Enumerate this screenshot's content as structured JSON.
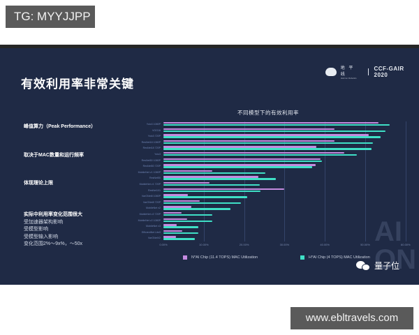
{
  "watermarks": {
    "top": "TG: MYYJJPP",
    "bottom": "www.ebltravels.com"
  },
  "slide": {
    "title": "有效利用率非常关键",
    "brand": {
      "name_cn": "地 平 线",
      "name_en": "Horizon Robotics",
      "event": "CCF-GAIR 2020"
    },
    "points": [
      {
        "heading": "峰值算力（Peak Performance）",
        "subs": []
      },
      {
        "heading": "取决于MAC数量和运行频率",
        "subs": []
      },
      {
        "heading": "体现理论上限",
        "subs": []
      },
      {
        "heading": "实际中利用率变化范围很大",
        "subs": [
          "受加速器架构影响",
          "受模型影响",
          "受模型输入影响",
          "变化范围2%～9x%，～50x"
        ]
      }
    ],
    "background_text": "AI ON",
    "source_badge": {
      "icon": "wechat-icon",
      "name": "量子位"
    }
  },
  "chart_data": {
    "type": "bar",
    "orientation": "horizontal",
    "title": "不同模型下的有效利用率",
    "xlabel": "",
    "ylabel": "",
    "xlim": [
      0,
      60
    ],
    "x_ticks": [
      "0.00%",
      "10.00%",
      "20.00%",
      "30.00%",
      "40.00%",
      "50.00%",
      "60.00%"
    ],
    "grid": true,
    "legend_position": "bottom",
    "categories": [
      "Yolo3 1080P",
      "VGG16",
      "Yolo3 720P",
      "ResNet18 1080P",
      "ResNet18 720P",
      "Yolo3",
      "ResNet50 1080P",
      "ResNet50 720P",
      "MobileNet v1 1080P",
      "ResNet50",
      "MobileNet v1 720P",
      "ResNet101",
      "VarGNet8 1080P",
      "VarGNet8 720P",
      "MobileNet v2",
      "MobileNet v2 720P",
      "MobileNet v2 1080P",
      "MobileNet v3",
      "EfficientNet Lite0",
      "VarGNetV2"
    ],
    "series": [
      {
        "name": "N*AI Chip (11.4 TOPS) MAC Utilization",
        "color": "#c58be0",
        "values": [
          53.3,
          42.4,
          50.9,
          42.4,
          37.9,
          44.8,
          38.9,
          37.7,
          12.1,
          23.5,
          11.4,
          29.9,
          6.1,
          9.0,
          6.9,
          4.5,
          5.9,
          3.3,
          4.7,
          3.1
        ]
      },
      {
        "name": "H*AI Chip (4 TOPS) MAC Utilization",
        "color": "#3fe0c6",
        "values": [
          56.0,
          55.0,
          53.8,
          51.9,
          51.6,
          47.9,
          39.3,
          36.9,
          25.3,
          27.9,
          23.9,
          24.0,
          20.8,
          19.2,
          16.6,
          12.1,
          12.1,
          8.6,
          8.6,
          7.8
        ]
      }
    ]
  }
}
